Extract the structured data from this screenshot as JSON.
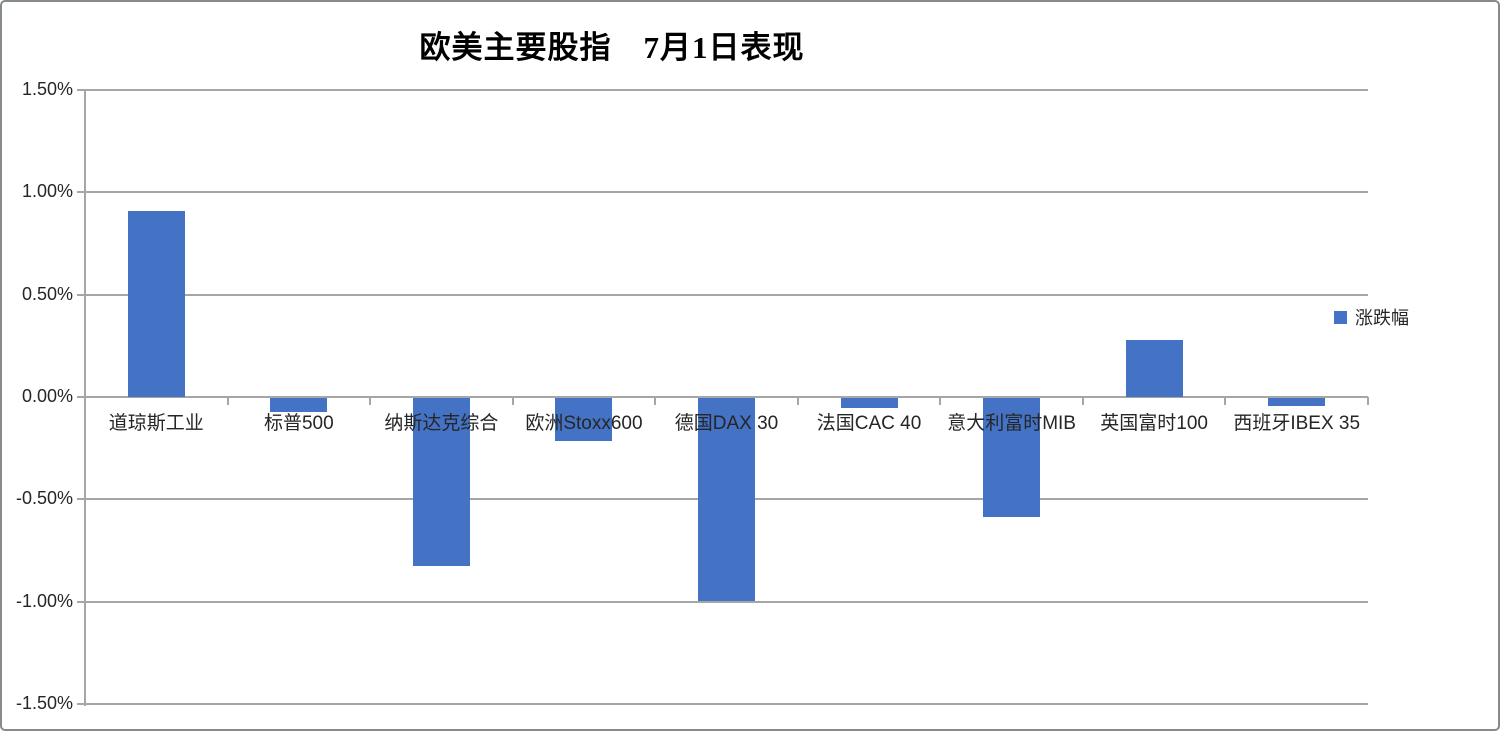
{
  "window": {
    "background": "#ffffff",
    "border_color": "#858c85"
  },
  "chart_data": {
    "type": "bar",
    "title": "欧美主要股指　7月1日表现",
    "categories": [
      "道琼斯工业",
      "标普500",
      "纳斯达克综合",
      "欧洲Stoxx600",
      "德国DAX 30",
      "法国CAC 40",
      "意大利富时MIB",
      "英国富时100",
      "西班牙IBEX 35"
    ],
    "series": [
      {
        "name": "涨跌幅",
        "values": [
          0.91,
          -0.07,
          -0.82,
          -0.21,
          -0.99,
          -0.05,
          -0.58,
          0.28,
          -0.04
        ]
      }
    ],
    "value_unit": "%",
    "ylim": [
      -1.5,
      1.5
    ],
    "ytick_step": 0.5,
    "ytick_labels": [
      "1.50%",
      "1.00%",
      "0.50%",
      "0.00%",
      "-0.50%",
      "-1.00%",
      "-1.50%"
    ],
    "grid": true,
    "legend_position": "right",
    "bar_color": "#4472C4",
    "gridline_color": "#A6A6A6",
    "axis_text_color": "#262626",
    "title_color": "#000000"
  },
  "legend": {
    "label": "涨跌幅",
    "marker_color": "#4472C4"
  }
}
